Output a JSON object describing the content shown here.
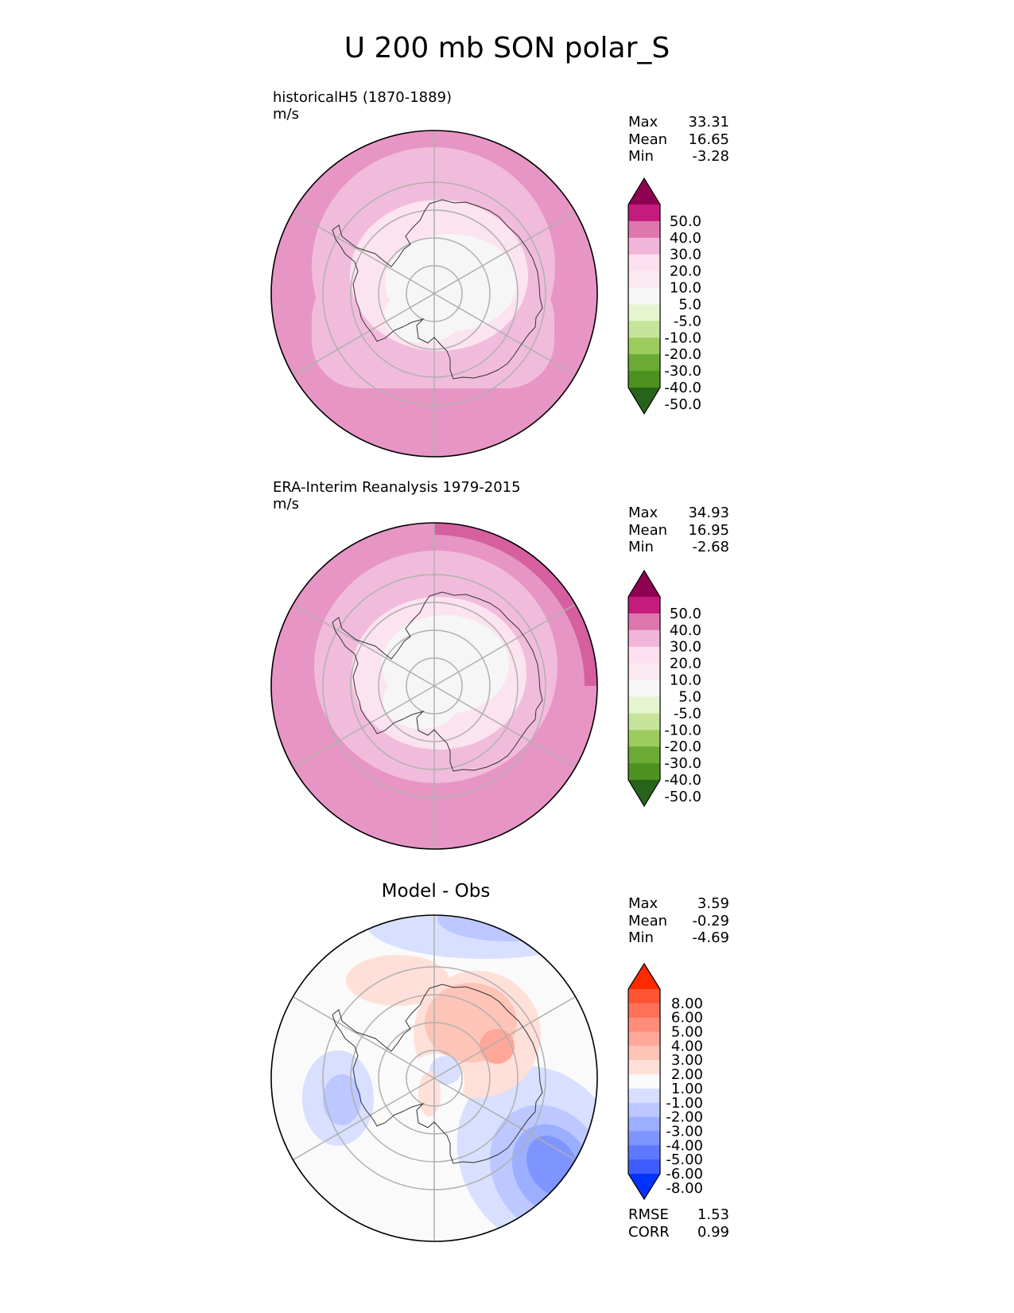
{
  "title": "U 200 mb SON polar_S",
  "panels": [
    {
      "name": "test",
      "label_line1": "historicalH5 (1870-1889)",
      "label_line2": "m/s",
      "stats": {
        "Max": "33.31",
        "Mean": "16.65",
        "Min": "-3.28"
      },
      "stat_labels": [
        "Max",
        "Mean",
        "Min"
      ]
    },
    {
      "name": "reference",
      "label_line1": "ERA-Interim Reanalysis 1979-2015",
      "label_line2": "m/s",
      "stats": {
        "Max": "34.93",
        "Mean": "16.95",
        "Min": "-2.68"
      },
      "stat_labels": [
        "Max",
        "Mean",
        "Min"
      ]
    },
    {
      "name": "difference",
      "title": "Model - Obs",
      "stats": {
        "Max": "3.59",
        "Mean": "-0.29",
        "Min": "-4.69"
      },
      "stat_labels": [
        "Max",
        "Mean",
        "Min"
      ],
      "metrics": {
        "RMSE": "1.53",
        "CORR": "0.99"
      }
    }
  ],
  "colorbar_main": {
    "labels": [
      "50.0",
      "40.0",
      "30.0",
      "20.0",
      "10.0",
      "5.0",
      "-5.0",
      "-10.0",
      "-20.0",
      "-30.0",
      "-40.0",
      "-50.0"
    ],
    "colors": [
      "#8e0152",
      "#c51b7d",
      "#de77ae",
      "#f1b6da",
      "#fde0ef",
      "#fbe9f2",
      "#f7f7f7",
      "#e6f5d0",
      "#c6e59b",
      "#9ccc5d",
      "#6aaa35",
      "#4d9221",
      "#276419"
    ]
  },
  "colorbar_diff": {
    "labels": [
      "8.00",
      "6.00",
      "5.00",
      "4.00",
      "3.00",
      "2.00",
      "1.00",
      "-1.00",
      "-2.00",
      "-3.00",
      "-4.00",
      "-5.00",
      "-6.00",
      "-8.00"
    ],
    "colors": [
      "#ff2a00",
      "#ff5433",
      "#ff7057",
      "#ff8c78",
      "#ffa899",
      "#ffc4b8",
      "#ffe0d8",
      "#fafafa",
      "#d8dfff",
      "#bcc8ff",
      "#9caeff",
      "#7e94ff",
      "#5e78ff",
      "#3f5cff",
      "#0033ff"
    ]
  }
}
